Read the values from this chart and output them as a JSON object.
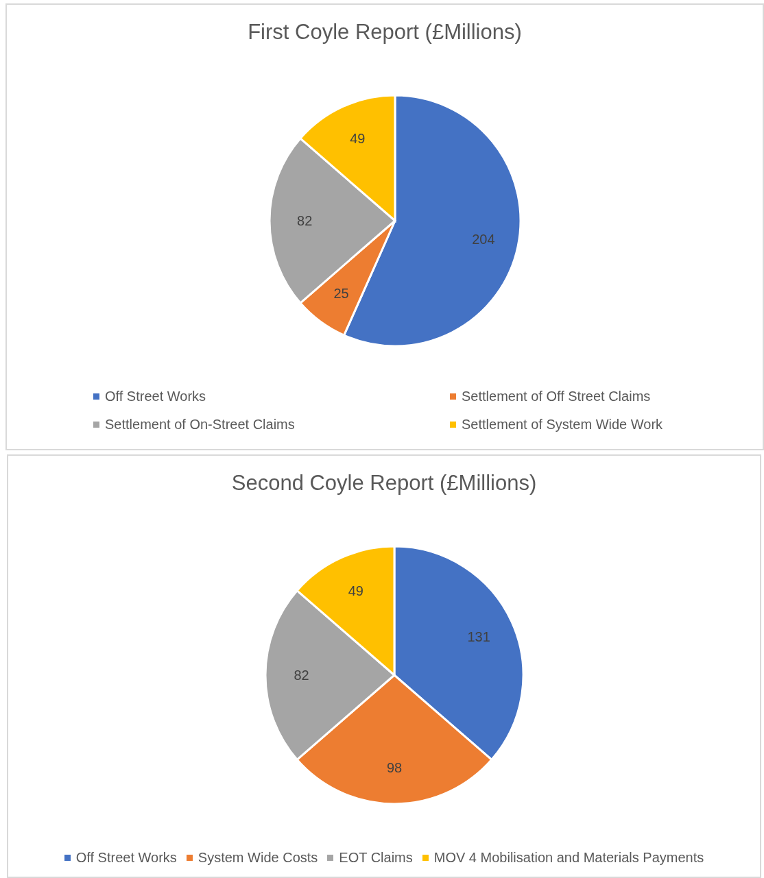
{
  "chart_data": [
    {
      "type": "pie",
      "title": "First Coyle Report (£Millions)",
      "categories": [
        "Off Street Works",
        "Settlement of Off Street Claims",
        "Settlement of On-Street Claims",
        "Settlement of System Wide Work"
      ],
      "values": [
        204,
        25,
        82,
        49
      ],
      "colors": [
        "#4472c4",
        "#ed7d31",
        "#a5a5a5",
        "#ffc000"
      ],
      "data_labels": true,
      "legend": "bottom"
    },
    {
      "type": "pie",
      "title": "Second Coyle Report (£Millions)",
      "categories": [
        "Off Street Works",
        "System Wide Costs",
        "EOT Claims",
        "MOV 4 Mobilisation and Materials Payments"
      ],
      "values": [
        131,
        98,
        82,
        49
      ],
      "colors": [
        "#4472c4",
        "#ed7d31",
        "#a5a5a5",
        "#ffc000"
      ],
      "data_labels": true,
      "legend": "bottom"
    }
  ]
}
